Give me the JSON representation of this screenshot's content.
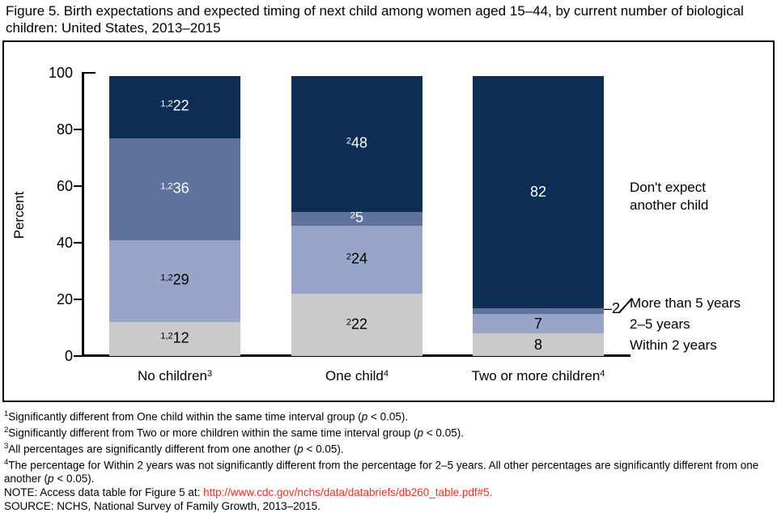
{
  "title": "Figure 5. Birth expectations and expected timing of next child among women aged 15–44, by current number of biological children: United States, 2013–2015",
  "chart_data": {
    "type": "bar",
    "stacked": true,
    "ylabel": "Percent",
    "ylim": [
      0,
      100
    ],
    "yticks": [
      "0",
      "20",
      "40",
      "60",
      "80",
      "100"
    ],
    "grid": false,
    "legend_position": "right-annotations",
    "categories": [
      "No children",
      "One child",
      "Two or more children"
    ],
    "category_sups": [
      "3",
      "4",
      "4"
    ],
    "series": [
      {
        "name": "Within 2 years",
        "color": "#cacaca",
        "label_color": "#000000",
        "values": [
          12,
          22,
          8
        ],
        "label_sups": [
          "1,2",
          "2",
          ""
        ]
      },
      {
        "name": "2–5 years",
        "color": "#99a5c8",
        "label_color": "#000000",
        "values": [
          29,
          24,
          7
        ],
        "label_sups": [
          "1,2",
          "2",
          ""
        ]
      },
      {
        "name": "More than 5 years",
        "color": "#60739e",
        "label_color": "#ffffff",
        "values": [
          36,
          5,
          2
        ],
        "label_sups": [
          "1,2",
          "2",
          ""
        ],
        "outside_label": {
          "category_index": 2,
          "text": "–2"
        }
      },
      {
        "name": "Don't expect another child",
        "color": "#0e2d55",
        "label_color": "#ffffff",
        "values": [
          22,
          48,
          82
        ],
        "label_sups": [
          "1,2",
          "2",
          ""
        ]
      }
    ]
  },
  "footnotes": [
    {
      "sup": "1",
      "before": "Significantly different from One child within the same time interval group (",
      "p": "p",
      "after": " < 0.05)."
    },
    {
      "sup": "2",
      "before": "Significantly different from Two or more children within the same time interval group (",
      "p": "p",
      "after": " < 0.05)."
    },
    {
      "sup": "3",
      "before": "All percentages are significantly different from one another (",
      "p": "p",
      "after": " < 0.05)."
    },
    {
      "sup": "4",
      "before": "The percentage for Within 2 years was not significantly different from the percentage for 2–5 years. All other percentages are significantly different from one another (",
      "p": "p",
      "after": " < 0.05)."
    }
  ],
  "note": {
    "prefix": "NOTE: Access data table for Figure 5 at: ",
    "link": "http://www.cdc.gov/nchs/data/databriefs/db260_table.pdf#5."
  },
  "source": "SOURCE: NCHS, National Survey of Family Growth, 2013–2015.",
  "colors": {
    "link_red": "#ee3124",
    "axis": "#000000"
  }
}
